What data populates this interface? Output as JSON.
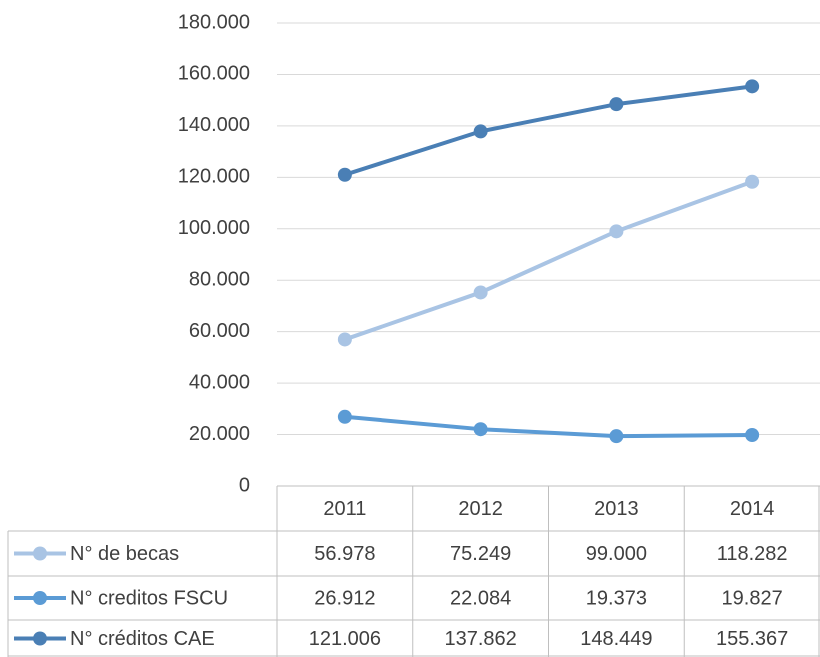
{
  "chart_data": {
    "type": "line",
    "categories": [
      "2011",
      "2012",
      "2013",
      "2014"
    ],
    "series": [
      {
        "name": "N° de becas",
        "color": "#a9c4e4",
        "values": [
          56978,
          75249,
          99000,
          118282
        ],
        "value_labels": [
          "56.978",
          "75.249",
          "99.000",
          "118.282"
        ]
      },
      {
        "name": "N° creditos FSCU",
        "color": "#5b9bd5",
        "values": [
          26912,
          22084,
          19373,
          19827
        ],
        "value_labels": [
          "26.912",
          "22.084",
          "19.373",
          "19.827"
        ]
      },
      {
        "name": "N° créditos CAE",
        "color": "#4a7fb5",
        "values": [
          121006,
          137862,
          148449,
          155367
        ],
        "value_labels": [
          "121.006",
          "137.862",
          "148.449",
          "155.367"
        ]
      }
    ],
    "ylim": [
      0,
      180000
    ],
    "yticks": [
      0,
      {
        "value": 20000,
        "label": "20.000"
      },
      {
        "value": 40000,
        "label": "40.000"
      },
      {
        "value": 60000,
        "label": "60.000"
      },
      {
        "value": 80000,
        "label": "80.000"
      },
      {
        "value": 100000,
        "label": "100.000"
      },
      {
        "value": 120000,
        "label": "120.000"
      },
      {
        "value": 140000,
        "label": "140.000"
      },
      {
        "value": 160000,
        "label": "160.000"
      },
      {
        "value": 180000,
        "label": "180.000"
      }
    ],
    "grid": true
  }
}
